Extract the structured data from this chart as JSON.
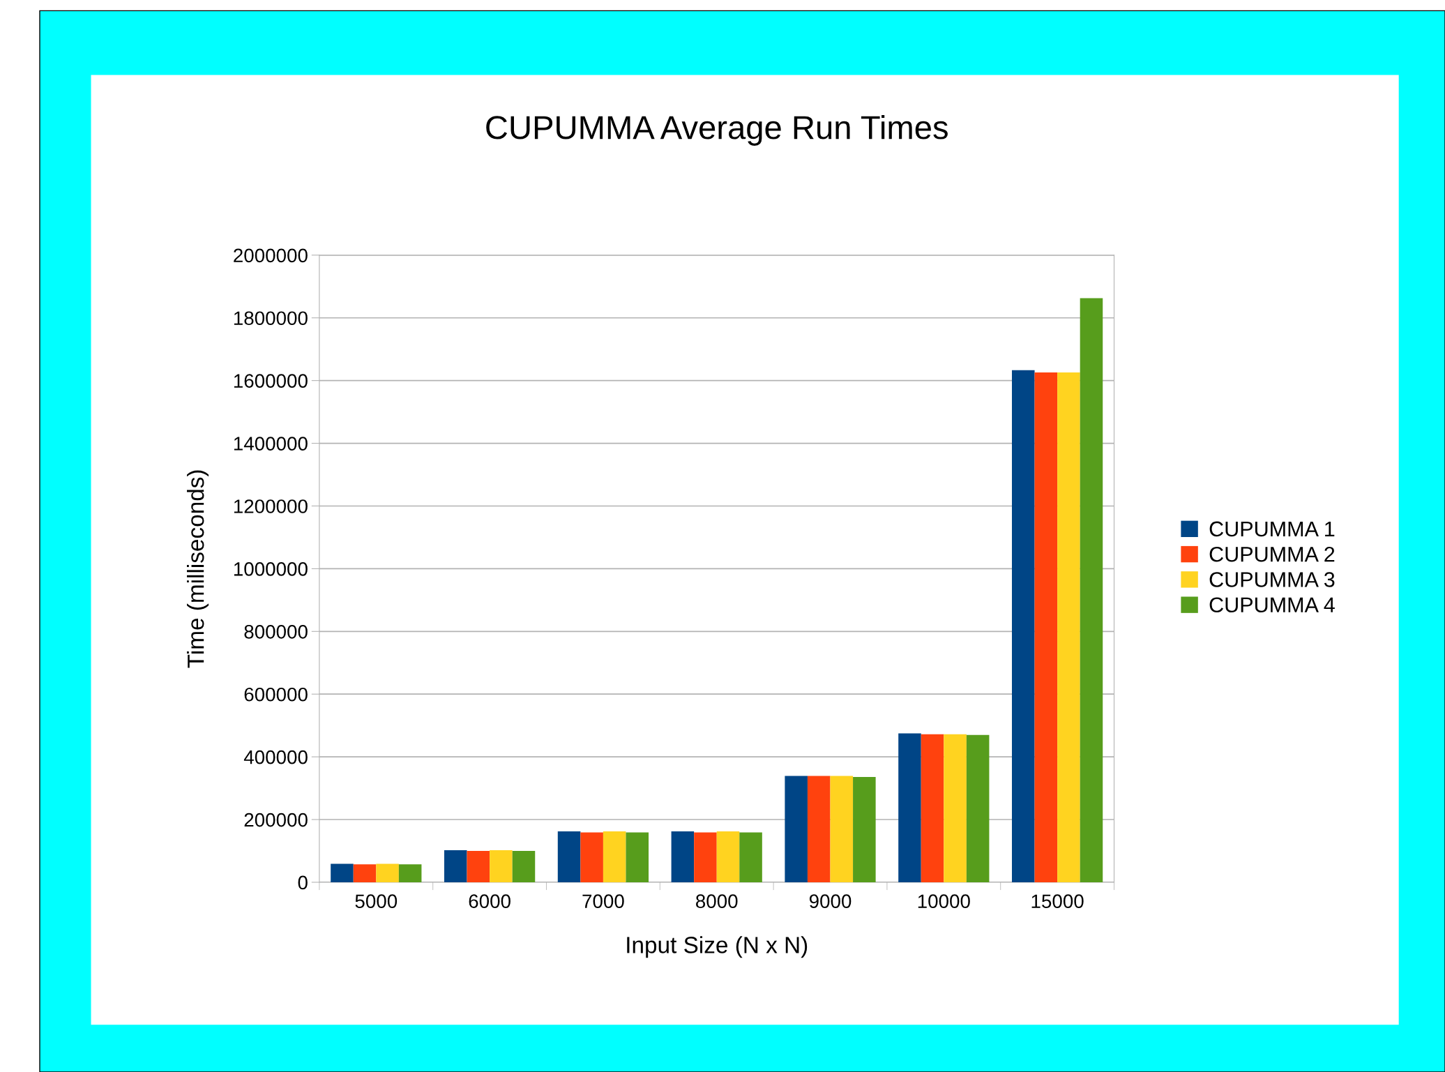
{
  "chart_data": {
    "type": "bar",
    "title": "CUPUMMA Average Run Times",
    "xlabel": "Input Size (N x N)",
    "ylabel": "Time (milliseconds)",
    "categories": [
      "5000",
      "6000",
      "7000",
      "8000",
      "9000",
      "10000",
      "15000"
    ],
    "series": [
      {
        "name": "CUPUMMA 1",
        "color": "#004586",
        "values": [
          59000,
          102000,
          162000,
          162000,
          339000,
          475000,
          1633000
        ]
      },
      {
        "name": "CUPUMMA 2",
        "color": "#ff420e",
        "values": [
          57000,
          100000,
          159000,
          159000,
          339000,
          472000,
          1626000
        ]
      },
      {
        "name": "CUPUMMA 3",
        "color": "#ffd320",
        "values": [
          59000,
          102000,
          162000,
          162000,
          339000,
          472000,
          1626000
        ]
      },
      {
        "name": "CUPUMMA 4",
        "color": "#579d1c",
        "values": [
          57000,
          100000,
          159000,
          159000,
          336000,
          470000,
          1863000
        ]
      }
    ],
    "ylim": [
      0,
      2000000
    ],
    "yticks": [
      0,
      200000,
      400000,
      600000,
      800000,
      1000000,
      1200000,
      1400000,
      1600000,
      1800000,
      2000000
    ],
    "grid": "y",
    "legend": "right"
  }
}
